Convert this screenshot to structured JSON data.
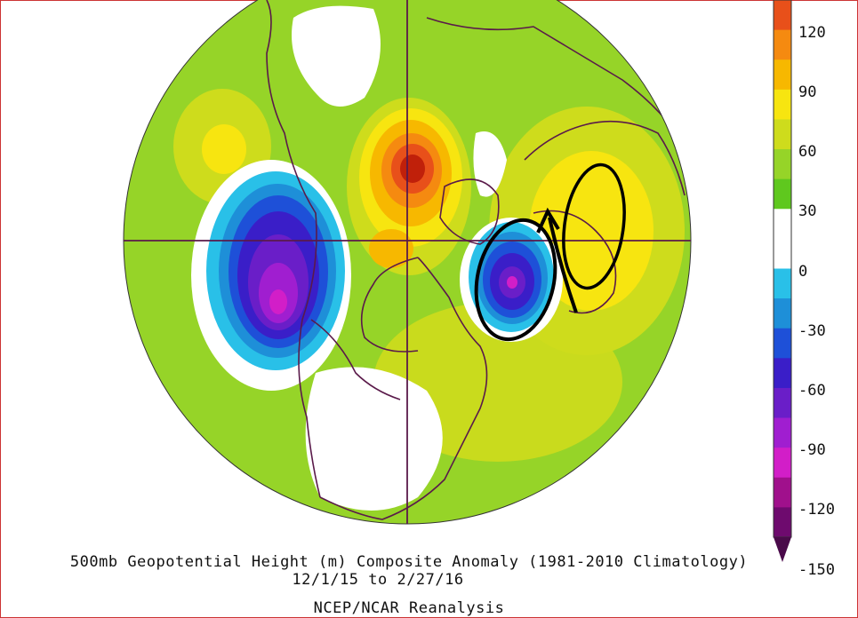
{
  "caption": {
    "line1": "500mb Geopotential Height (m) Composite Anomaly (1981-2010 Climatology)",
    "line2": "12/1/15  to 2/27/16",
    "line3": "NCEP/NCAR Reanalysis"
  },
  "colorbar": {
    "labels": [
      "120",
      "90",
      "60",
      "30",
      "0",
      "-30",
      "-60",
      "-90",
      "-120",
      "-150"
    ],
    "colors": [
      "#e8501a",
      "#f58a10",
      "#f7b800",
      "#f7e510",
      "#cedc1c",
      "#96d428",
      "#5fc81e",
      "#ffffff",
      "#ffffff",
      "#29c0e8",
      "#1e8fd8",
      "#1e50d8",
      "#3a1ec8",
      "#6a1ec8",
      "#a01ed0",
      "#d21ec8",
      "#a0108c",
      "#6e0a6e"
    ]
  },
  "map": {
    "background": "#96d428",
    "outline_color": "#5a1a4a",
    "annotation_color": "#000000",
    "icons": [
      "north-america-continent",
      "greenland",
      "europe",
      "asia",
      "pole-crosshair",
      "ellipse-annotation",
      "arrow-annotation"
    ]
  }
}
